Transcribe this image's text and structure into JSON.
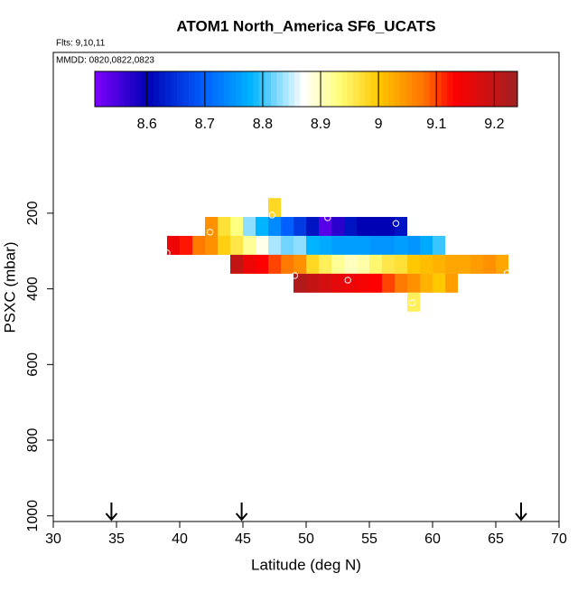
{
  "chart_data": {
    "type": "heatmap",
    "title": "ATOM1 North_America SF6_UCATS",
    "subtitle": "Flts: 9,10,11",
    "annotation": "MMDD: 0820,0822,0823",
    "x_label": "Latitude (deg N)",
    "y_label": "PSXC (mbar)",
    "xlim": [
      30,
      70
    ],
    "xticks": [
      30,
      35,
      40,
      45,
      50,
      55,
      60,
      65,
      70
    ],
    "ylim": [
      1015,
      -225
    ],
    "yticks": [
      200,
      400,
      600,
      800,
      1000
    ],
    "zlim": [
      8.51,
      9.24
    ],
    "colorbar_ticks": [
      8.6,
      8.7,
      8.8,
      8.9,
      9.0,
      9.1,
      9.2
    ],
    "colorscale": [
      [
        8.51,
        "#8000ff"
      ],
      [
        8.6,
        "#0000b4"
      ],
      [
        8.7,
        "#0060ff"
      ],
      [
        8.78,
        "#00b4ff"
      ],
      [
        8.87,
        "#ffffff"
      ],
      [
        8.93,
        "#ffff80"
      ],
      [
        9.0,
        "#ffc800"
      ],
      [
        9.08,
        "#ff7000"
      ],
      [
        9.13,
        "#ff0000"
      ],
      [
        9.24,
        "#a02020"
      ]
    ],
    "x": [
      47.5,
      42.5,
      43.5,
      44.5,
      45.5,
      46.5,
      47.5,
      48.5,
      49.5,
      50.5,
      51.5,
      52.5,
      53.5,
      54.5,
      55.5,
      56.5,
      57.5,
      39.5,
      40.5,
      41.5,
      42.5,
      43.5,
      44.5,
      45.5,
      46.5,
      47.5,
      48.5,
      49.5,
      50.5,
      51.5,
      52.5,
      53.5,
      54.5,
      55.5,
      56.5,
      57.5,
      58.5,
      59.5,
      60.5,
      44.5,
      45.5,
      46.5,
      47.5,
      48.5,
      49.5,
      50.5,
      51.5,
      52.5,
      53.5,
      54.5,
      55.5,
      56.5,
      57.5,
      58.5,
      59.5,
      60.5,
      61.5,
      62.5,
      63.5,
      64.5,
      65.5,
      49.5,
      50.5,
      51.5,
      52.5,
      53.5,
      54.5,
      55.5,
      56.5,
      57.5,
      58.5,
      59.5,
      60.5,
      61.5,
      58.5
    ],
    "y": [
      185,
      235,
      235,
      235,
      235,
      235,
      235,
      235,
      235,
      235,
      235,
      235,
      235,
      235,
      235,
      235,
      235,
      285,
      285,
      285,
      285,
      285,
      285,
      285,
      285,
      285,
      285,
      285,
      285,
      285,
      285,
      285,
      285,
      285,
      285,
      285,
      285,
      285,
      285,
      335,
      335,
      335,
      335,
      335,
      335,
      335,
      335,
      335,
      335,
      335,
      335,
      335,
      335,
      335,
      335,
      335,
      335,
      335,
      335,
      335,
      335,
      385,
      385,
      385,
      385,
      385,
      385,
      385,
      385,
      385,
      385,
      385,
      385,
      385,
      435
    ],
    "z": [
      8.98,
      9.05,
      8.97,
      8.93,
      8.83,
      8.78,
      8.74,
      8.7,
      8.66,
      8.62,
      8.54,
      8.57,
      8.62,
      8.6,
      8.6,
      8.6,
      8.62,
      9.15,
      9.12,
      9.07,
      9.05,
      8.99,
      8.96,
      8.92,
      8.88,
      8.84,
      8.82,
      8.83,
      8.78,
      8.77,
      8.76,
      8.76,
      8.76,
      8.75,
      8.75,
      8.76,
      8.75,
      8.77,
      8.8,
      9.2,
      9.15,
      9.13,
      9.1,
      9.07,
      9.05,
      8.98,
      8.95,
      8.92,
      8.9,
      8.91,
      8.94,
      8.96,
      8.97,
      9.0,
      9.01,
      9.02,
      9.03,
      9.03,
      9.04,
      9.05,
      9.03,
      9.22,
      9.2,
      9.18,
      9.16,
      9.15,
      9.14,
      9.13,
      9.1,
      9.07,
      9.05,
      9.02,
      9.0,
      9.04,
      8.95
    ],
    "points": {
      "x": [
        47.3,
        42.4,
        51.7,
        57.1,
        39.0,
        49.1,
        53.3,
        65.9,
        58.4
      ],
      "y": [
        205,
        250,
        212,
        227,
        305,
        365,
        377,
        358,
        437
      ]
    },
    "arrows": [
      34.6,
      44.9,
      67.0
    ]
  }
}
